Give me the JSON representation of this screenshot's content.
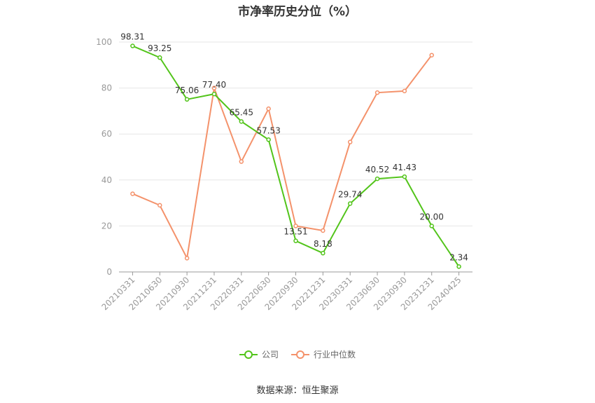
{
  "chart_data": {
    "type": "line",
    "title": "市净率历史分位（%）",
    "categories": [
      "20210331",
      "20210630",
      "20210930",
      "20211231",
      "20220331",
      "20220630",
      "20220930",
      "20221231",
      "20230331",
      "20230630",
      "20230930",
      "20231231",
      "20240425"
    ],
    "ylim": [
      0,
      100
    ],
    "yticks": [
      0,
      20,
      40,
      60,
      80,
      100
    ],
    "grid": true,
    "legend_position": "bottom",
    "series": [
      {
        "name": "公司",
        "color": "#52c41a",
        "show_labels": true,
        "values": [
          98.31,
          93.25,
          75.06,
          77.4,
          65.45,
          57.53,
          13.51,
          8.18,
          29.74,
          40.52,
          41.43,
          20.0,
          2.34
        ]
      },
      {
        "name": "行业中位数",
        "color": "#f4926b",
        "show_labels": false,
        "values": [
          34,
          29,
          6,
          80,
          48,
          71,
          20,
          18,
          56.5,
          78,
          78.7,
          94.3,
          null
        ]
      }
    ]
  },
  "legend": {
    "company": "公司",
    "industry": "行业中位数"
  },
  "source": "数据来源：恒生聚源"
}
